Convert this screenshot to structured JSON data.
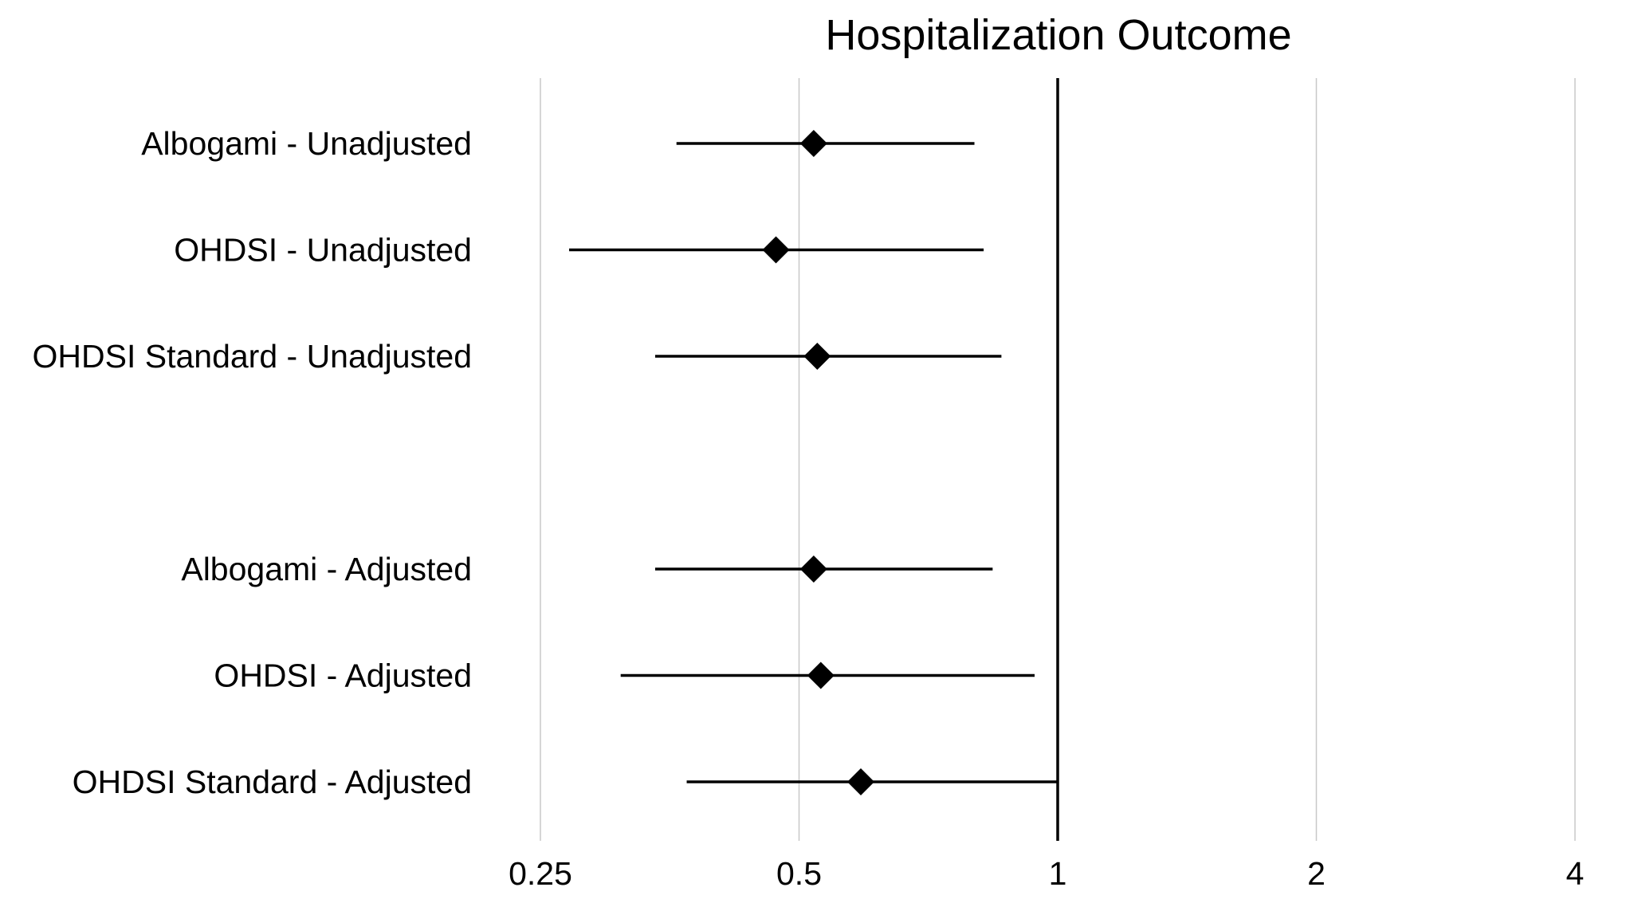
{
  "chart_data": {
    "type": "forest",
    "title": "Hospitalization Outcome",
    "xlabel": "",
    "ylabel": "",
    "x_scale": "log2",
    "xlim": [
      0.25,
      4
    ],
    "x_ticks": [
      0.25,
      0.5,
      1,
      2,
      4
    ],
    "x_tick_labels": [
      "0.25",
      "0.5",
      "1",
      "2",
      "4"
    ],
    "reference_line": 1,
    "grid": "vertical",
    "legend": "none",
    "marker": "diamond",
    "colors": {
      "marker": "#000000",
      "whisker": "#000000",
      "grid": "#c8c8c8",
      "reference": "#000000"
    },
    "groups": [
      {
        "rows": [
          {
            "label": "Albogami - Unadjusted",
            "estimate": 0.52,
            "ci_low": 0.36,
            "ci_high": 0.8
          },
          {
            "label": "OHDSI - Unadjusted",
            "estimate": 0.47,
            "ci_low": 0.27,
            "ci_high": 0.82
          },
          {
            "label": "OHDSI Standard - Unadjusted",
            "estimate": 0.525,
            "ci_low": 0.34,
            "ci_high": 0.86
          }
        ]
      },
      {
        "rows": [
          {
            "label": "Albogami - Adjusted",
            "estimate": 0.52,
            "ci_low": 0.34,
            "ci_high": 0.84
          },
          {
            "label": "OHDSI - Adjusted",
            "estimate": 0.53,
            "ci_low": 0.31,
            "ci_high": 0.94
          },
          {
            "label": "OHDSI Standard - Adjusted",
            "estimate": 0.59,
            "ci_low": 0.37,
            "ci_high": 1.0
          }
        ]
      }
    ]
  }
}
